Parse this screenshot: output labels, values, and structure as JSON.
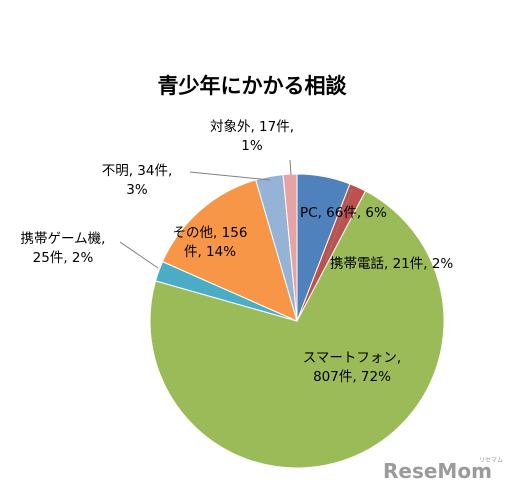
{
  "chart_data": {
    "type": "pie",
    "title": "青少年にかかる相談",
    "slices": [
      {
        "name": "PC",
        "count": 66,
        "percent": 6,
        "color": "#4f81bd",
        "label_lines": [
          "PC, 66件, 6%"
        ]
      },
      {
        "name": "携帯電話",
        "count": 21,
        "percent": 2,
        "color": "#c0504d",
        "label_lines": [
          "携帯電話, 21件, 2%"
        ]
      },
      {
        "name": "スマートフォン",
        "count": 807,
        "percent": 72,
        "color": "#9bbb59",
        "label_lines": [
          "スマートフォン,",
          "807件, 72%"
        ]
      },
      {
        "name": "携帯ゲーム機",
        "count": 25,
        "percent": 2,
        "color": "#4bacc6",
        "label_lines": [
          "携帯ゲーム機,",
          "25件, 2%"
        ]
      },
      {
        "name": "その他",
        "count": 156,
        "percent": 14,
        "color": "#f79646",
        "label_lines": [
          "その他, 156",
          "件, 14%"
        ]
      },
      {
        "name": "不明",
        "count": 34,
        "percent": 3,
        "color": "#95b3d7",
        "label_lines": [
          "不明, 34件,",
          "3%"
        ]
      },
      {
        "name": "対象外",
        "count": 17,
        "percent": 1,
        "color": "#e6a3a3",
        "label_lines": [
          "対象外, 17件,",
          "1%"
        ]
      }
    ]
  },
  "branding": {
    "logo_text": "ReseMom",
    "logo_sub": "リセマム"
  }
}
